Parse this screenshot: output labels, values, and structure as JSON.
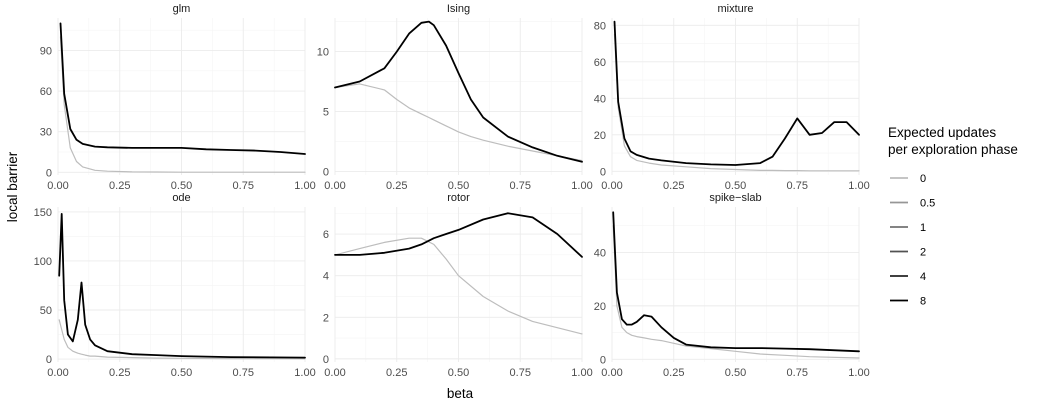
{
  "chart_data": {
    "type": "line",
    "layout": "facet-grid 2x3",
    "xlabel": "beta",
    "ylabel": "local barrier",
    "xlim": [
      0,
      1
    ],
    "x_ticks": [
      "0.00",
      "0.25",
      "0.50",
      "0.75",
      "1.00"
    ],
    "x_tick_values": [
      0,
      0.25,
      0.5,
      0.75,
      1
    ],
    "grid": true,
    "legend": {
      "position": "right",
      "title_lines": [
        "Expected updates",
        "per exploration phase"
      ],
      "entries": [
        {
          "label": "0",
          "color": "#bdbdbd"
        },
        {
          "label": "0.5",
          "color": "#969696"
        },
        {
          "label": "1",
          "color": "#737373"
        },
        {
          "label": "2",
          "color": "#525252"
        },
        {
          "label": "4",
          "color": "#252525"
        },
        {
          "label": "8",
          "color": "#000000"
        }
      ]
    },
    "panels": [
      {
        "title": "glm",
        "ylim": [
          -2,
          114
        ],
        "y_ticks": [
          0,
          30,
          60,
          90
        ],
        "y_tick_labels": [
          "0",
          "30",
          "60",
          "90"
        ],
        "x": [
          0.01,
          0.025,
          0.05,
          0.075,
          0.1,
          0.15,
          0.2,
          0.3,
          0.4,
          0.5,
          0.6,
          0.7,
          0.8,
          0.9,
          1.0
        ],
        "series": [
          {
            "label": "0",
            "y": [
              100,
              50,
              18,
              8,
              4,
              1.5,
              0.8,
              0.3,
              0.2,
              0.1,
              0.1,
              0.1,
              0.1,
              0.1,
              0.1
            ]
          },
          {
            "label": "8",
            "y": [
              110,
              58,
              32,
              24,
              21,
              19,
              18.5,
              18,
              18,
              18,
              17,
              16.5,
              16,
              15,
              13.5
            ]
          }
        ]
      },
      {
        "title": "Ising",
        "ylim": [
          -0.3,
          12.8
        ],
        "y_ticks": [
          0,
          5,
          10
        ],
        "y_tick_labels": [
          "0",
          "5",
          "10"
        ],
        "x": [
          0.0,
          0.1,
          0.2,
          0.25,
          0.3,
          0.35,
          0.38,
          0.4,
          0.45,
          0.5,
          0.55,
          0.6,
          0.7,
          0.8,
          0.9,
          1.0
        ],
        "series": [
          {
            "label": "0",
            "y": [
              7.0,
              7.3,
              6.8,
              6.0,
              5.3,
              4.8,
              4.5,
              4.3,
              3.8,
              3.3,
              2.9,
              2.6,
              2.1,
              1.7,
              1.3,
              0.9
            ]
          },
          {
            "label": "8",
            "y": [
              7.0,
              7.5,
              8.6,
              10.0,
              11.5,
              12.4,
              12.5,
              12.2,
              10.5,
              8.2,
              6.0,
              4.5,
              2.9,
              2.0,
              1.3,
              0.8
            ]
          }
        ]
      },
      {
        "title": "mixture",
        "ylim": [
          -2,
          84
        ],
        "y_ticks": [
          0,
          20,
          40,
          60,
          80
        ],
        "y_tick_labels": [
          "0",
          "20",
          "40",
          "60",
          "80"
        ],
        "x": [
          0.01,
          0.025,
          0.05,
          0.075,
          0.1,
          0.15,
          0.2,
          0.3,
          0.4,
          0.5,
          0.6,
          0.65,
          0.7,
          0.75,
          0.8,
          0.85,
          0.9,
          0.95,
          1.0
        ],
        "series": [
          {
            "label": "0",
            "y": [
              75,
              35,
              14,
              8,
              6,
              4.5,
              3.5,
              2.5,
              1.5,
              1,
              0.5,
              0.5,
              0.4,
              0.4,
              0.3,
              0.3,
              0.3,
              0.3,
              0.3
            ]
          },
          {
            "label": "8",
            "y": [
              82,
              38,
              18,
              11,
              9,
              7,
              6,
              4.5,
              3.8,
              3.5,
              4.5,
              8,
              18,
              29,
              20,
              21,
              27,
              27,
              20
            ]
          }
        ]
      },
      {
        "title": "ode",
        "ylim": [
          -3,
          155
        ],
        "y_ticks": [
          0,
          50,
          100,
          150
        ],
        "y_tick_labels": [
          "0",
          "50",
          "100",
          "150"
        ],
        "x": [
          0.005,
          0.015,
          0.025,
          0.04,
          0.06,
          0.08,
          0.095,
          0.11,
          0.13,
          0.15,
          0.2,
          0.3,
          0.4,
          0.5,
          0.7,
          1.0
        ],
        "series": [
          {
            "label": "0",
            "y": [
              40,
              30,
              20,
              12,
              8,
              6,
              5,
              4,
              3,
              3,
              2,
              1.5,
              1,
              0.8,
              0.5,
              0.3
            ]
          },
          {
            "label": "8",
            "y": [
              85,
              148,
              60,
              25,
              18,
              40,
              78,
              35,
              20,
              14,
              8,
              5,
              4,
              3,
              2,
              1.5
            ]
          }
        ]
      },
      {
        "title": "rotor",
        "ylim": [
          -0.15,
          7.3
        ],
        "y_ticks": [
          0,
          2,
          4,
          6
        ],
        "y_tick_labels": [
          "0",
          "2",
          "4",
          "6"
        ],
        "x": [
          0.0,
          0.1,
          0.2,
          0.3,
          0.35,
          0.4,
          0.45,
          0.5,
          0.6,
          0.7,
          0.8,
          0.9,
          1.0
        ],
        "series": [
          {
            "label": "0",
            "y": [
              5.0,
              5.3,
              5.6,
              5.8,
              5.8,
              5.5,
              4.8,
              4.0,
              3.0,
              2.3,
              1.8,
              1.5,
              1.2
            ]
          },
          {
            "label": "8",
            "y": [
              5.0,
              5.0,
              5.1,
              5.3,
              5.5,
              5.8,
              6.0,
              6.2,
              6.7,
              7.0,
              6.8,
              6.0,
              4.9
            ]
          }
        ]
      },
      {
        "title": "spike−slab",
        "ylim": [
          -1,
          57
        ],
        "y_ticks": [
          0,
          20,
          40
        ],
        "y_tick_labels": [
          "0",
          "20",
          "40"
        ],
        "x": [
          0.005,
          0.02,
          0.04,
          0.06,
          0.08,
          0.1,
          0.13,
          0.16,
          0.2,
          0.25,
          0.3,
          0.4,
          0.5,
          0.6,
          0.7,
          0.8,
          1.0
        ],
        "series": [
          {
            "label": "0",
            "y": [
              50,
              20,
              12,
              10,
              9,
              8.5,
              8,
              7.5,
              7,
              6,
              5,
              4,
              3,
              2,
              1.5,
              1,
              0.5
            ]
          },
          {
            "label": "8",
            "y": [
              55,
              25,
              15,
              13,
              13,
              14,
              16.5,
              16,
              12,
              8,
              5.5,
              4.5,
              4.2,
              4.2,
              4,
              3.8,
              3
            ]
          }
        ]
      }
    ]
  }
}
